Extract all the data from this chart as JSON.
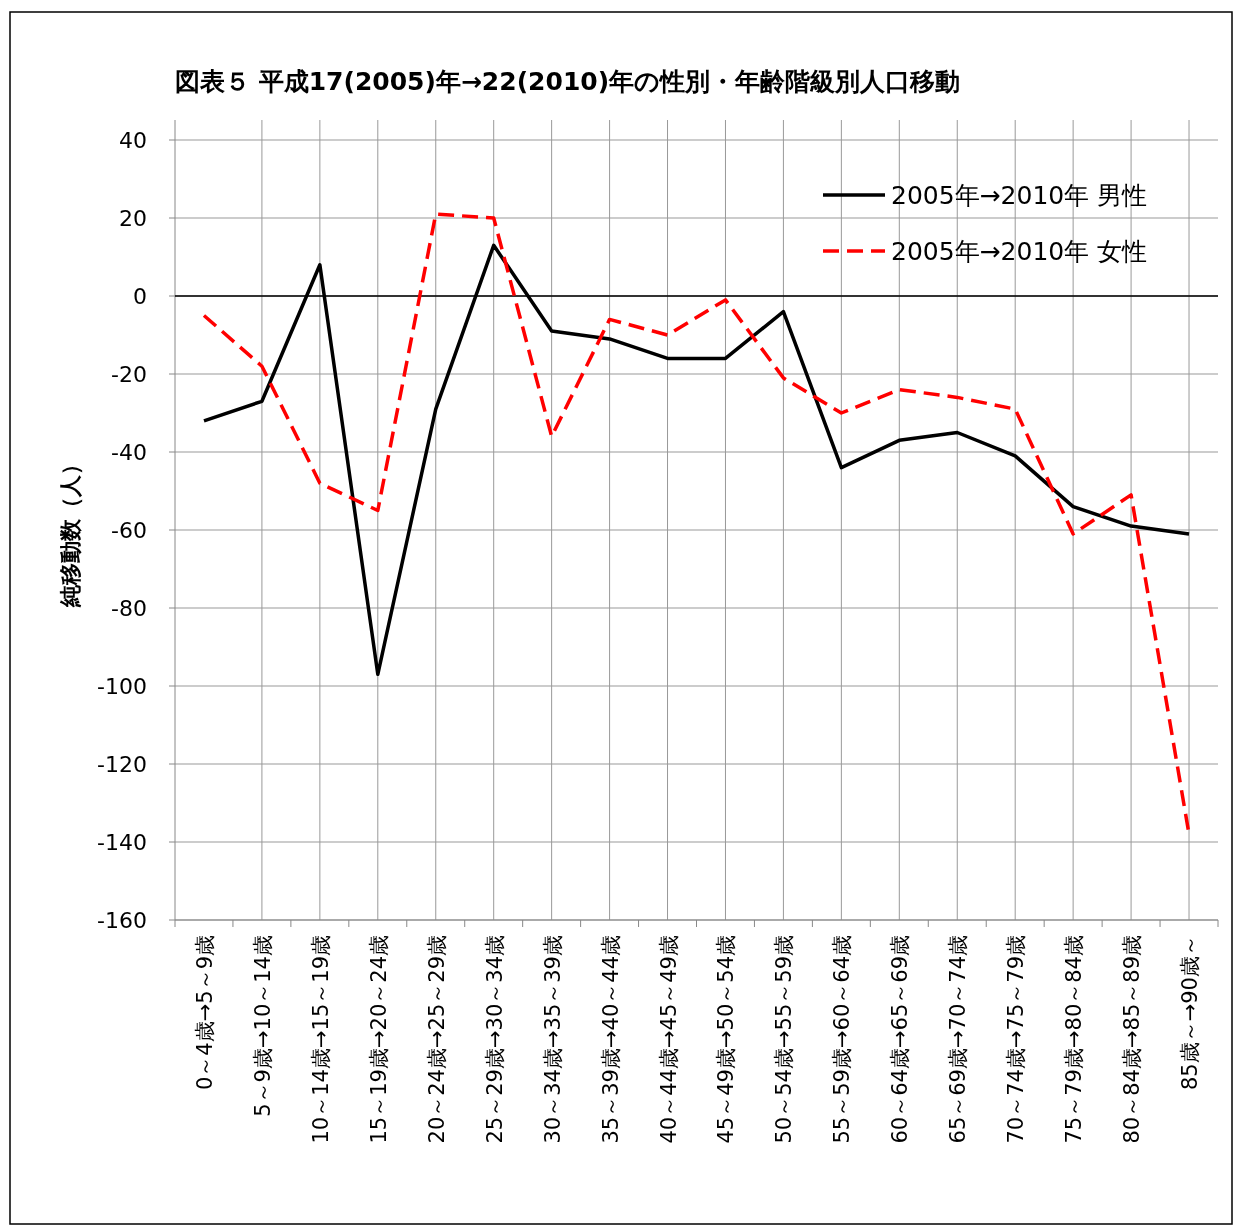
{
  "chart_data": {
    "type": "line",
    "title": "図表５ 平成17(2005)年→22(2010)年の性別・年齢階級別人口移動",
    "ylabel": "純移動数（人）",
    "categories": [
      "0～4歳→5～9歳",
      "5～9歳→10～14歳",
      "10～14歳→15～19歳",
      "15～19歳→20～24歳",
      "20～24歳→25～29歳",
      "25～29歳→30～34歳",
      "30～34歳→35～39歳",
      "35～39歳→40～44歳",
      "40～44歳→45～49歳",
      "45～49歳→50～54歳",
      "50～54歳→55～59歳",
      "55～59歳→60～64歳",
      "60～64歳→65～69歳",
      "65～69歳→70～74歳",
      "70～74歳→75～79歳",
      "75～79歳→80～84歳",
      "80～84歳→85～89歳",
      "85歳～→90歳～"
    ],
    "series": [
      {
        "name": "2005年→2010年 男性",
        "color": "#000000",
        "line_style": "solid",
        "values": [
          -32,
          -27,
          8,
          -97,
          -29,
          13,
          -9,
          -11,
          -16,
          -16,
          -4,
          -44,
          -37,
          -35,
          -41,
          -54,
          -59,
          -61
        ]
      },
      {
        "name": "2005年→2010年 女性",
        "color": "#ff0000",
        "line_style": "dashed",
        "values": [
          -5,
          -18,
          -48,
          -55,
          21,
          20,
          -36,
          -6,
          -10,
          -1,
          -21,
          -30,
          -24,
          -26,
          -29,
          -61,
          -51,
          -138
        ]
      }
    ],
    "ylim": [
      -160,
      40
    ],
    "yticks": [
      -160,
      -140,
      -120,
      -100,
      -80,
      -60,
      -40,
      -20,
      0,
      20,
      40
    ],
    "grid": true,
    "legend": "top right"
  }
}
